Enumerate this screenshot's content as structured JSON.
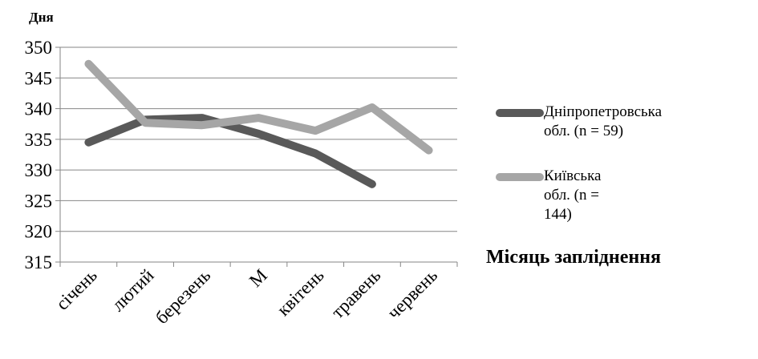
{
  "chart_data": {
    "type": "line",
    "ylabel": "Дня",
    "xlabel": "Місяць запліднення",
    "categories": [
      "січень",
      "лютий",
      "березень",
      "М",
      "квітень",
      "травень",
      "червень"
    ],
    "ylim": [
      315,
      350
    ],
    "yticks": [
      315,
      320,
      325,
      330,
      335,
      340,
      345,
      350
    ],
    "grid": true,
    "legend_position": "right",
    "series": [
      {
        "name": "Дніпропетровська обл. (n = 59)",
        "color": "#595959",
        "values": [
          334.5,
          338.2,
          338.5,
          335.9,
          332.7,
          327.7,
          null
        ]
      },
      {
        "name": "Київська обл. (n = 144)",
        "color": "#a6a6a6",
        "values": [
          347.3,
          337.7,
          337.3,
          338.5,
          336.4,
          340.2,
          333.2
        ]
      }
    ]
  }
}
